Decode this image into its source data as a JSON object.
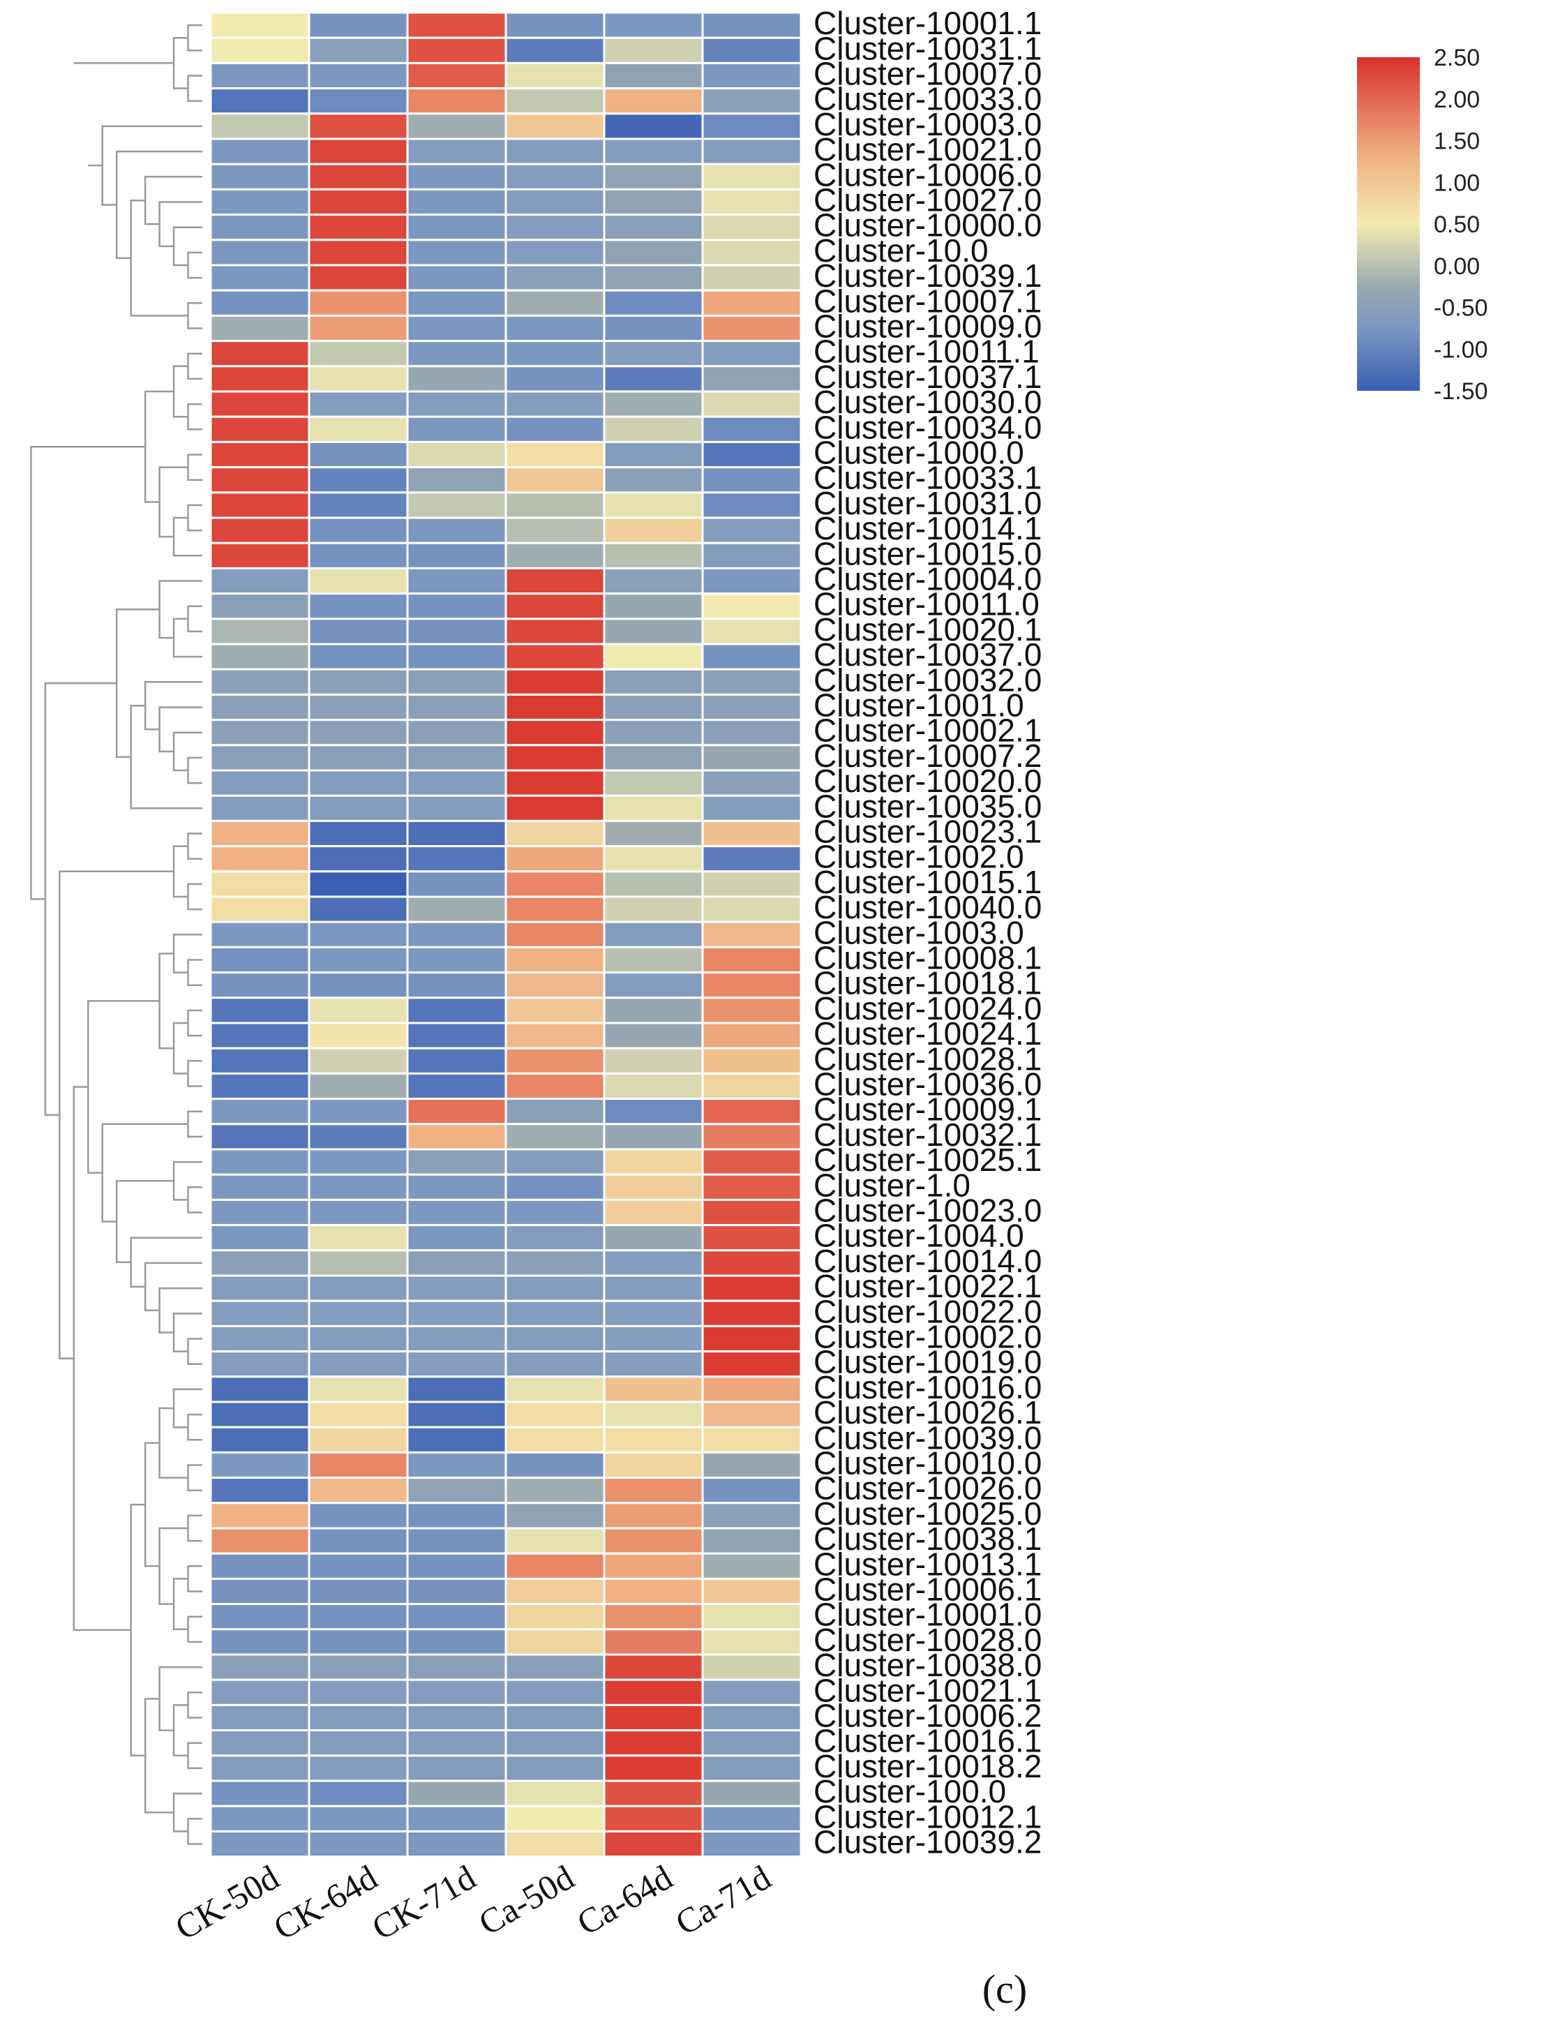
{
  "chart_data": {
    "type": "heatmap",
    "title": "",
    "caption": "(c)",
    "columns": [
      "CK-50d",
      "CK-64d",
      "CK-71d",
      "Ca-50d",
      "Ca-64d",
      "Ca-71d"
    ],
    "rows": [
      "Cluster-10001.1",
      "Cluster-10031.1",
      "Cluster-10007.0",
      "Cluster-10033.0",
      "Cluster-10003.0",
      "Cluster-10021.0",
      "Cluster-10006.0",
      "Cluster-10027.0",
      "Cluster-10000.0",
      "Cluster-10.0",
      "Cluster-10039.1",
      "Cluster-10007.1",
      "Cluster-10009.0",
      "Cluster-10011.1",
      "Cluster-10037.1",
      "Cluster-10030.0",
      "Cluster-10034.0",
      "Cluster-1000.0",
      "Cluster-10033.1",
      "Cluster-10031.0",
      "Cluster-10014.1",
      "Cluster-10015.0",
      "Cluster-10004.0",
      "Cluster-10011.0",
      "Cluster-10020.1",
      "Cluster-10037.0",
      "Cluster-10032.0",
      "Cluster-1001.0",
      "Cluster-10002.1",
      "Cluster-10007.2",
      "Cluster-10020.0",
      "Cluster-10035.0",
      "Cluster-10023.1",
      "Cluster-1002.0",
      "Cluster-10015.1",
      "Cluster-10040.0",
      "Cluster-1003.0",
      "Cluster-10008.1",
      "Cluster-10018.1",
      "Cluster-10024.0",
      "Cluster-10024.1",
      "Cluster-10028.1",
      "Cluster-10036.0",
      "Cluster-10009.1",
      "Cluster-10032.1",
      "Cluster-10025.1",
      "Cluster-1.0",
      "Cluster-10023.0",
      "Cluster-1004.0",
      "Cluster-10014.0",
      "Cluster-10022.1",
      "Cluster-10022.0",
      "Cluster-10002.0",
      "Cluster-10019.0",
      "Cluster-10016.0",
      "Cluster-10026.1",
      "Cluster-10039.0",
      "Cluster-10010.0",
      "Cluster-10026.0",
      "Cluster-10025.0",
      "Cluster-10038.1",
      "Cluster-10013.1",
      "Cluster-10006.1",
      "Cluster-10001.0",
      "Cluster-10028.0",
      "Cluster-10038.0",
      "Cluster-10021.1",
      "Cluster-10006.2",
      "Cluster-10016.1",
      "Cluster-10018.2",
      "Cluster-100.0",
      "Cluster-10012.1",
      "Cluster-10039.2"
    ],
    "values": [
      [
        0.5,
        -0.8,
        2.2,
        -0.8,
        -0.7,
        -0.8
      ],
      [
        0.5,
        -0.5,
        2.2,
        -1.1,
        0.2,
        -1.0
      ],
      [
        -0.7,
        -0.7,
        2.1,
        0.4,
        -0.4,
        -0.7
      ],
      [
        -1.2,
        -0.9,
        1.7,
        0.1,
        1.3,
        -0.5
      ],
      [
        0.1,
        2.2,
        -0.2,
        1.0,
        -1.4,
        -0.9
      ],
      [
        -0.7,
        2.3,
        -0.6,
        -0.6,
        -0.6,
        -0.6
      ],
      [
        -0.7,
        2.3,
        -0.7,
        -0.6,
        -0.4,
        0.4
      ],
      [
        -0.7,
        2.3,
        -0.7,
        -0.6,
        -0.4,
        0.4
      ],
      [
        -0.7,
        2.3,
        -0.7,
        -0.6,
        -0.5,
        0.3
      ],
      [
        -0.7,
        2.3,
        -0.7,
        -0.6,
        -0.4,
        0.3
      ],
      [
        -0.7,
        2.3,
        -0.7,
        -0.5,
        -0.4,
        0.2
      ],
      [
        -0.8,
        1.6,
        -0.7,
        -0.2,
        -0.9,
        1.4
      ],
      [
        -0.2,
        1.5,
        -0.7,
        -0.7,
        -0.8,
        1.6
      ],
      [
        2.3,
        0.1,
        -0.7,
        -0.7,
        -0.6,
        -0.6
      ],
      [
        2.3,
        0.4,
        -0.3,
        -0.8,
        -1.1,
        -0.4
      ],
      [
        2.3,
        -0.6,
        -0.6,
        -0.6,
        -0.2,
        0.3
      ],
      [
        2.3,
        0.4,
        -0.7,
        -0.8,
        0.2,
        -0.9
      ],
      [
        2.3,
        -0.8,
        0.3,
        0.7,
        -0.6,
        -1.2
      ],
      [
        2.3,
        -1.0,
        -0.4,
        1.0,
        -0.5,
        -0.8
      ],
      [
        2.3,
        -1.0,
        0.1,
        0.0,
        0.4,
        -0.9
      ],
      [
        2.3,
        -0.8,
        -0.7,
        0.0,
        0.9,
        -0.6
      ],
      [
        2.3,
        -0.8,
        -0.8,
        -0.2,
        0.0,
        -0.6
      ],
      [
        -0.6,
        0.4,
        -0.7,
        2.3,
        -0.5,
        -0.7
      ],
      [
        -0.5,
        -0.8,
        -0.8,
        2.3,
        -0.3,
        0.5
      ],
      [
        -0.1,
        -0.8,
        -0.8,
        2.3,
        -0.3,
        0.4
      ],
      [
        -0.2,
        -0.8,
        -0.8,
        2.3,
        0.5,
        -0.8
      ],
      [
        -0.5,
        -0.5,
        -0.5,
        2.4,
        -0.5,
        -0.5
      ],
      [
        -0.5,
        -0.5,
        -0.5,
        2.4,
        -0.5,
        -0.5
      ],
      [
        -0.5,
        -0.5,
        -0.5,
        2.4,
        -0.5,
        -0.5
      ],
      [
        -0.5,
        -0.5,
        -0.5,
        2.4,
        -0.4,
        -0.3
      ],
      [
        -0.6,
        -0.6,
        -0.6,
        2.4,
        0.1,
        -0.5
      ],
      [
        -0.6,
        -0.6,
        -0.6,
        2.4,
        0.4,
        -0.6
      ],
      [
        1.3,
        -1.3,
        -1.3,
        0.8,
        -0.2,
        1.1
      ],
      [
        1.3,
        -1.3,
        -1.2,
        1.4,
        0.4,
        -1.1
      ],
      [
        0.7,
        -1.5,
        -0.8,
        1.7,
        0.0,
        0.2
      ],
      [
        0.7,
        -1.3,
        -0.2,
        1.7,
        0.2,
        0.3
      ],
      [
        -0.7,
        -0.7,
        -0.7,
        1.7,
        -0.6,
        1.2
      ],
      [
        -0.8,
        -0.7,
        -0.7,
        1.3,
        0.0,
        1.7
      ],
      [
        -0.8,
        -0.8,
        -0.8,
        1.2,
        -0.6,
        1.7
      ],
      [
        -1.2,
        0.4,
        -1.2,
        1.0,
        -0.3,
        1.6
      ],
      [
        -1.2,
        0.6,
        -1.2,
        1.2,
        -0.3,
        1.4
      ],
      [
        -1.2,
        0.2,
        -1.2,
        1.6,
        0.2,
        1.1
      ],
      [
        -1.2,
        -0.2,
        -1.2,
        1.7,
        0.3,
        0.8
      ],
      [
        -0.7,
        -0.7,
        1.9,
        -0.5,
        -0.9,
        2.0
      ],
      [
        -1.2,
        -1.1,
        1.3,
        -0.2,
        -0.3,
        1.8
      ],
      [
        -0.7,
        -0.7,
        -0.5,
        -0.6,
        0.8,
        2.1
      ],
      [
        -0.7,
        -0.7,
        -0.7,
        -0.8,
        0.9,
        2.1
      ],
      [
        -0.7,
        -0.7,
        -0.7,
        -0.7,
        0.9,
        2.2
      ],
      [
        -0.7,
        0.4,
        -0.7,
        -0.6,
        -0.3,
        2.2
      ],
      [
        -0.5,
        0.0,
        -0.5,
        -0.5,
        -0.6,
        2.3
      ],
      [
        -0.6,
        -0.6,
        -0.6,
        -0.6,
        -0.6,
        2.4
      ],
      [
        -0.6,
        -0.6,
        -0.6,
        -0.6,
        -0.6,
        2.4
      ],
      [
        -0.6,
        -0.6,
        -0.6,
        -0.6,
        -0.6,
        2.4
      ],
      [
        -0.6,
        -0.6,
        -0.6,
        -0.6,
        -0.6,
        2.4
      ],
      [
        -1.3,
        0.4,
        -1.3,
        0.4,
        1.1,
        1.4
      ],
      [
        -1.3,
        0.7,
        -1.3,
        0.7,
        0.4,
        1.2
      ],
      [
        -1.3,
        0.8,
        -1.3,
        0.7,
        0.7,
        0.7
      ],
      [
        -0.7,
        1.7,
        -0.7,
        -0.8,
        0.8,
        -0.3
      ],
      [
        -1.2,
        1.2,
        -0.4,
        -0.2,
        1.6,
        -0.8
      ],
      [
        1.3,
        -0.8,
        -0.8,
        -0.4,
        1.5,
        -0.5
      ],
      [
        1.6,
        -0.8,
        -0.8,
        0.4,
        1.6,
        -0.4
      ],
      [
        -0.8,
        -0.8,
        -0.8,
        1.7,
        1.4,
        -0.2
      ],
      [
        -0.8,
        -0.8,
        -0.8,
        0.9,
        1.3,
        1.0
      ],
      [
        -0.8,
        -0.8,
        -0.8,
        0.8,
        1.6,
        0.4
      ],
      [
        -0.8,
        -0.8,
        -0.8,
        0.8,
        1.8,
        0.4
      ],
      [
        -0.5,
        -0.5,
        -0.5,
        -0.5,
        2.3,
        0.2
      ],
      [
        -0.6,
        -0.6,
        -0.6,
        -0.6,
        2.4,
        -0.6
      ],
      [
        -0.6,
        -0.6,
        -0.6,
        -0.6,
        2.4,
        -0.6
      ],
      [
        -0.6,
        -0.6,
        -0.6,
        -0.6,
        2.4,
        -0.6
      ],
      [
        -0.6,
        -0.6,
        -0.6,
        -0.6,
        2.4,
        -0.6
      ],
      [
        -0.8,
        -0.9,
        -0.3,
        0.4,
        2.2,
        -0.3
      ],
      [
        -0.7,
        -0.7,
        -0.7,
        0.5,
        2.2,
        -0.7
      ],
      [
        -0.7,
        -0.7,
        -0.7,
        0.7,
        2.3,
        -0.7
      ]
    ],
    "colorbar": {
      "min": -1.5,
      "max": 2.5,
      "ticks": [
        "2.50",
        "2.00",
        "1.50",
        "1.00",
        "0.50",
        "0.00",
        "-0.50",
        "-1.00",
        "-1.50"
      ],
      "tick_values": [
        2.5,
        2.0,
        1.5,
        1.0,
        0.5,
        0.0,
        -0.5,
        -1.0,
        -1.5
      ],
      "colors": [
        "#3a5fb3",
        "#7a96c2",
        "#9aa9b0",
        "#f2ebb0",
        "#f0b184",
        "#d9312b"
      ],
      "stops": [
        -1.5,
        -0.75,
        -0.25,
        0.5,
        1.3,
        2.5
      ],
      "placement": "top-right"
    },
    "dendrogram": "row clustering tree on the left",
    "cell_border_color": "#ffffff"
  }
}
